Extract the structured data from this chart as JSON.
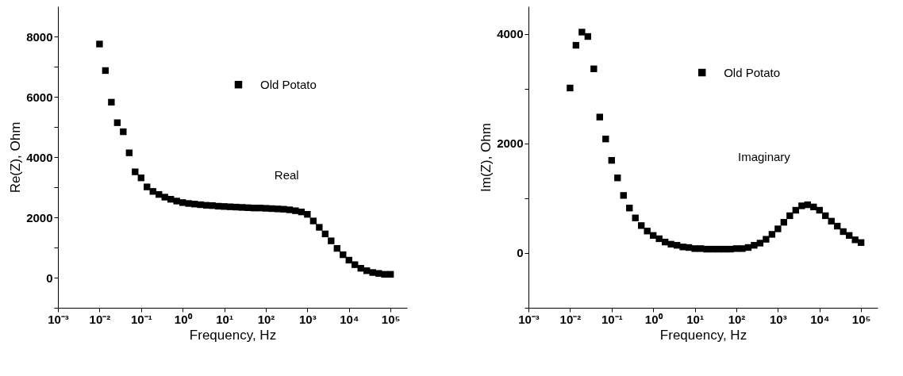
{
  "chart_data": [
    {
      "type": "scatter",
      "xlabel": "Frequency, Hz",
      "ylabel": "Re(Z), Ohm",
      "log": "x",
      "marker": "square",
      "legend": "top",
      "grid": false,
      "annotations": [
        "Real"
      ],
      "xlim": [
        0.001,
        250000
      ],
      "ylim": [
        -1000,
        9000
      ],
      "xticks": [
        {
          "value": 0.001,
          "label": "10⁻³"
        },
        {
          "value": 0.01,
          "label": "10⁻²"
        },
        {
          "value": 0.1,
          "label": "10⁻¹"
        },
        {
          "value": 1,
          "label": "10⁰"
        },
        {
          "value": 10,
          "label": "10¹"
        },
        {
          "value": 100,
          "label": "10²"
        },
        {
          "value": 1000,
          "label": "10³"
        },
        {
          "value": 10000,
          "label": "10⁴"
        },
        {
          "value": 100000,
          "label": "10⁵"
        }
      ],
      "yticks": [
        {
          "value": -1000,
          "label": null
        },
        0,
        {
          "value": 1000,
          "label": null
        },
        2000,
        {
          "value": 3000,
          "label": null
        },
        4000,
        {
          "value": 5000,
          "label": null
        },
        6000,
        {
          "value": 7000,
          "label": null
        },
        8000
      ],
      "x": [
        0.01,
        0.01389,
        0.01931,
        0.02683,
        0.03728,
        0.05179,
        0.07197,
        0.1,
        0.1389,
        0.1931,
        0.2683,
        0.3728,
        0.5179,
        0.7197,
        1,
        1.389,
        1.931,
        2.683,
        3.728,
        5.179,
        7.197,
        10,
        13.89,
        19.31,
        26.83,
        37.28,
        51.79,
        71.97,
        100,
        138.9,
        193.1,
        268.3,
        372.8,
        517.9,
        719.7,
        1000,
        1389,
        1931,
        2683,
        3728,
        5179,
        7197,
        10000,
        13890,
        19310,
        26830,
        37280,
        51790,
        71970,
        100000
      ],
      "series": [
        {
          "name": "Old Potato",
          "color": "#000000",
          "values": [
            7750,
            6870,
            5820,
            5140,
            4840,
            4140,
            3510,
            3310,
            3010,
            2860,
            2760,
            2670,
            2600,
            2540,
            2490,
            2460,
            2440,
            2420,
            2400,
            2390,
            2370,
            2360,
            2350,
            2340,
            2330,
            2320,
            2310,
            2310,
            2300,
            2290,
            2280,
            2270,
            2250,
            2220,
            2180,
            2100,
            1880,
            1670,
            1450,
            1220,
            970,
            760,
            580,
            430,
            310,
            230,
            170,
            140,
            110,
            110
          ]
        }
      ]
    },
    {
      "type": "scatter",
      "xlabel": "Frequency, Hz",
      "ylabel": "Im(Z), Ohm",
      "log": "x",
      "marker": "square",
      "legend": "top",
      "grid": false,
      "annotations": [
        "Imaginary"
      ],
      "xlim": [
        0.001,
        250000
      ],
      "ylim": [
        -1000,
        4500
      ],
      "xticks": [
        {
          "value": 0.001,
          "label": "10⁻³"
        },
        {
          "value": 0.01,
          "label": "10⁻²"
        },
        {
          "value": 0.1,
          "label": "10⁻¹"
        },
        {
          "value": 1,
          "label": "10⁰"
        },
        {
          "value": 10,
          "label": "10¹"
        },
        {
          "value": 100,
          "label": "10²"
        },
        {
          "value": 1000,
          "label": "10³"
        },
        {
          "value": 10000,
          "label": "10⁴"
        },
        {
          "value": 100000,
          "label": "10⁵"
        }
      ],
      "yticks": [
        {
          "value": -1000,
          "label": null
        },
        0,
        {
          "value": 1000,
          "label": null
        },
        2000,
        {
          "value": 3000,
          "label": null
        },
        4000
      ],
      "x": [
        0.01,
        0.01389,
        0.01931,
        0.02683,
        0.03728,
        0.05179,
        0.07197,
        0.1,
        0.1389,
        0.1931,
        0.2683,
        0.3728,
        0.5179,
        0.7197,
        1,
        1.389,
        1.931,
        2.683,
        3.728,
        5.179,
        7.197,
        10,
        13.89,
        19.31,
        26.83,
        37.28,
        51.79,
        71.97,
        100,
        138.9,
        193.1,
        268.3,
        372.8,
        517.9,
        719.7,
        1000,
        1389,
        1931,
        2683,
        3728,
        5179,
        7197,
        10000,
        13890,
        19310,
        26830,
        37280,
        51790,
        71970,
        100000
      ],
      "series": [
        {
          "name": "Old Potato",
          "color": "#000000",
          "values": [
            3010,
            3790,
            4030,
            3950,
            3360,
            2480,
            2080,
            1690,
            1370,
            1050,
            820,
            640,
            500,
            400,
            320,
            260,
            200,
            160,
            140,
            110,
            100,
            80,
            80,
            70,
            70,
            70,
            70,
            70,
            80,
            80,
            100,
            140,
            180,
            250,
            340,
            440,
            560,
            680,
            780,
            860,
            880,
            840,
            780,
            680,
            580,
            490,
            390,
            320,
            240,
            190
          ]
        }
      ]
    }
  ]
}
